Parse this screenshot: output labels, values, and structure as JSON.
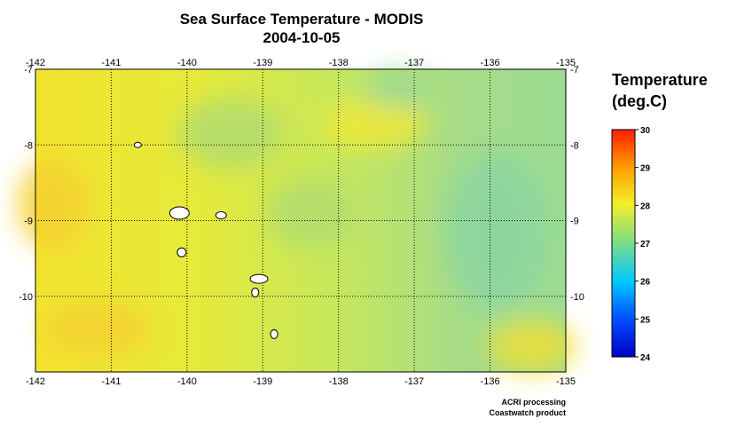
{
  "title": "Sea Surface Temperature - MODIS",
  "date": "2004-10-05",
  "map": {
    "lon_range": [
      -142,
      -135
    ],
    "lat_range": [
      -11,
      -7
    ],
    "lon_ticks": [
      -142,
      -141,
      -140,
      -139,
      -138,
      -137,
      -136,
      -135
    ],
    "lon_tick_labels": [
      "-142",
      "-141",
      "-140",
      "-139",
      "-138",
      "-137",
      "-136",
      "-135"
    ],
    "lat_ticks": [
      -7,
      -8,
      -9,
      -10
    ],
    "lat_tick_labels": [
      "-7",
      "-8",
      "-9",
      "-10"
    ],
    "grid": "dotted",
    "land_color": "#ffffff",
    "islands": [
      {
        "lon": -140.65,
        "lat": -8.0
      },
      {
        "lon": -140.1,
        "lat": -8.9
      },
      {
        "lon": -139.55,
        "lat": -8.93
      },
      {
        "lon": -140.07,
        "lat": -9.42
      },
      {
        "lon": -139.05,
        "lat": -9.77
      },
      {
        "lon": -139.1,
        "lat": -9.95
      },
      {
        "lon": -138.85,
        "lat": -10.5
      }
    ]
  },
  "legend": {
    "title_line1": "Temperature",
    "title_line2": "(deg.C)",
    "min": 24,
    "max": 30,
    "tick_labels": [
      "30",
      "29",
      "28",
      "27",
      "26",
      "25",
      "24"
    ],
    "ticks": [
      30,
      29,
      28,
      27,
      26,
      25,
      24
    ],
    "colors": [
      "#0000c8",
      "#0078ff",
      "#00d2ff",
      "#78dc8c",
      "#f0f028",
      "#ffa000",
      "#ff1e00"
    ]
  },
  "credits": {
    "line1": "ACRI processing",
    "line2": "Coastwatch product"
  }
}
